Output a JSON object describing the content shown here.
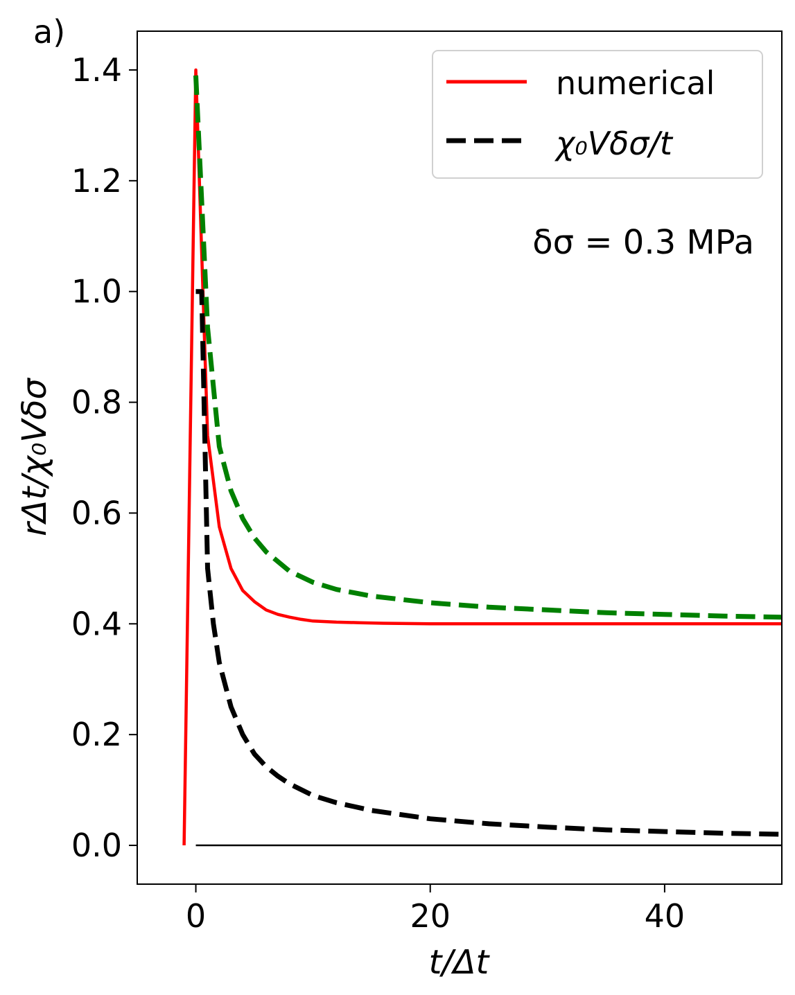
{
  "chart_data": {
    "type": "line",
    "panel_label": "a)",
    "xlabel": "t/Δt",
    "ylabel": "rΔt/χ₀Vδσ",
    "xlim": [
      -5,
      50
    ],
    "ylim": [
      -0.07,
      1.47
    ],
    "x_ticks": [
      0,
      20,
      40
    ],
    "y_ticks": [
      0.0,
      0.2,
      0.4,
      0.6,
      0.8,
      1.0,
      1.2,
      1.4
    ],
    "x_tick_labels": [
      "0",
      "20",
      "40"
    ],
    "y_tick_labels": [
      "0.0",
      "0.2",
      "0.4",
      "0.6",
      "0.8",
      "1.0",
      "1.2",
      "1.4"
    ],
    "legend": {
      "placement": "top-right",
      "entries": [
        {
          "label": "numerical",
          "series": 0
        },
        {
          "label": "χ₀Vδσ/t",
          "series": 1
        }
      ]
    },
    "annotation": "δσ = 0.3 MPa",
    "baseline": {
      "y": 0,
      "x": [
        0,
        50
      ],
      "color": "#000000"
    },
    "series": [
      {
        "name": "numerical",
        "color": "#ff0000",
        "style": "solid",
        "x": [
          -1,
          0,
          1,
          2,
          3,
          4,
          5,
          6,
          7,
          8,
          9,
          10,
          12,
          14,
          16,
          18,
          20,
          25,
          30,
          35,
          40,
          45,
          50
        ],
        "y": [
          0.0,
          1.4,
          0.74,
          0.575,
          0.5,
          0.46,
          0.44,
          0.425,
          0.417,
          0.412,
          0.408,
          0.405,
          0.403,
          0.402,
          0.401,
          0.4005,
          0.4,
          0.4,
          0.4,
          0.4,
          0.4,
          0.4,
          0.4
        ]
      },
      {
        "color": "#000000",
        "style": "dashed",
        "x": [
          0,
          0.5,
          1,
          1.5,
          2,
          3,
          4,
          5,
          6,
          7,
          8,
          10,
          12,
          15,
          20,
          25,
          30,
          35,
          40,
          45,
          50
        ],
        "y": [
          1.0,
          1.0,
          0.5,
          0.4,
          0.33,
          0.25,
          0.2,
          0.165,
          0.142,
          0.125,
          0.111,
          0.09,
          0.077,
          0.063,
          0.048,
          0.039,
          0.033,
          0.028,
          0.025,
          0.022,
          0.02
        ]
      },
      {
        "color": "#008000",
        "style": "dashed",
        "x": [
          0,
          1,
          2,
          3,
          4,
          5,
          6,
          8,
          10,
          12,
          15,
          20,
          25,
          30,
          35,
          40,
          45,
          50
        ],
        "y": [
          1.39,
          0.935,
          0.72,
          0.64,
          0.59,
          0.555,
          0.53,
          0.495,
          0.475,
          0.462,
          0.45,
          0.438,
          0.43,
          0.425,
          0.42,
          0.417,
          0.414,
          0.412
        ]
      }
    ]
  }
}
